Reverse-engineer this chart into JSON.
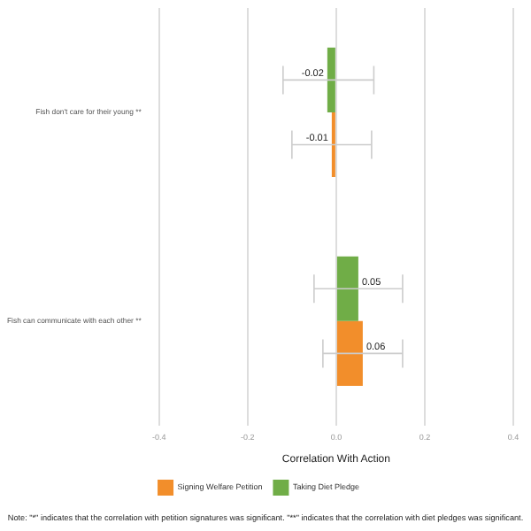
{
  "chart_data": {
    "type": "bar",
    "orientation": "horizontal",
    "xlabel": "Correlation With Action",
    "categories": [
      "Fish don't care for their young **",
      "Fish can communicate with each other **"
    ],
    "series": [
      {
        "name": "Taking Diet Pledge",
        "color": "#70ad47",
        "values": [
          -0.02,
          0.05
        ],
        "errors": [
          [
            -0.12,
            0.085
          ],
          [
            -0.05,
            0.15
          ]
        ]
      },
      {
        "name": "Signing Welfare Petition",
        "color": "#f28e2b",
        "values": [
          -0.01,
          0.06
        ],
        "errors": [
          [
            -0.1,
            0.08
          ],
          [
            -0.03,
            0.15
          ]
        ]
      }
    ],
    "xlim": [
      -0.4,
      0.4
    ],
    "xticks": [
      -0.4,
      -0.2,
      {
        "value": 0,
        "label": "0.0"
      },
      0.2,
      0.4
    ],
    "grid": "x",
    "legend": "bottom",
    "data_labels": true,
    "annotations": [
      "Note: \"*\" indicates that the correlation with petition signatures was significant. \"**\" indicates that the correlation with diet pledges was significant."
    ]
  }
}
